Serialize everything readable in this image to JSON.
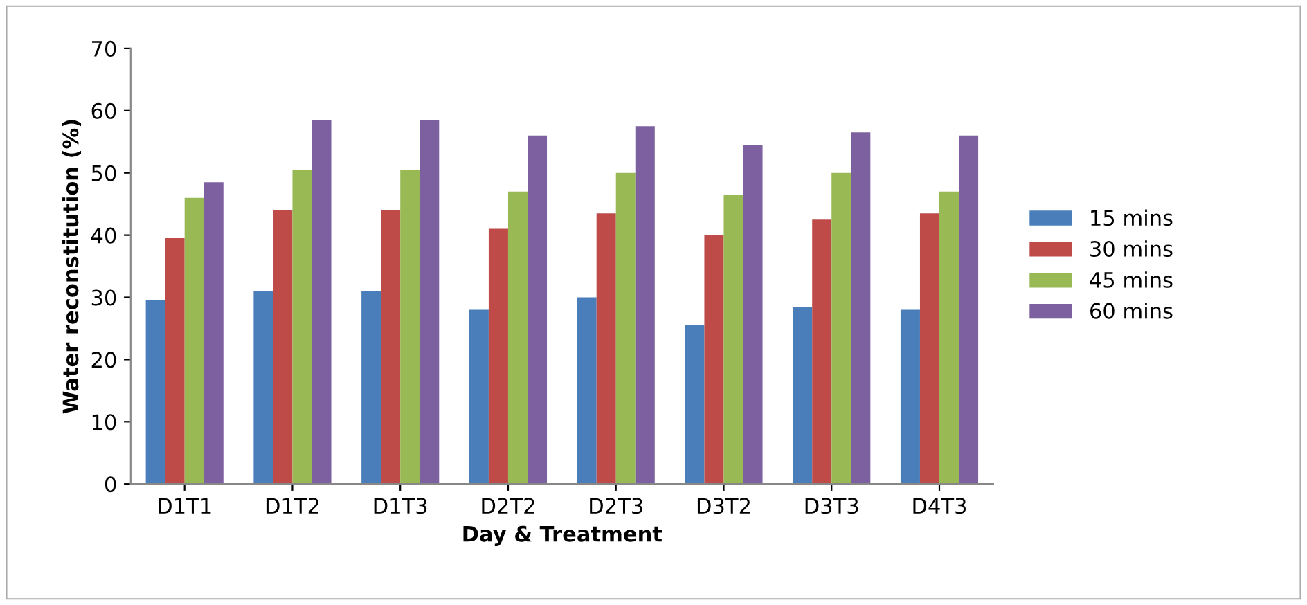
{
  "chart_data": {
    "type": "bar",
    "xlabel": "Day & Treatment",
    "ylabel": "Water reconstitution (%)",
    "categories": [
      "D1T1",
      "D1T2",
      "D1T3",
      "D2T2",
      "D2T3",
      "D3T2",
      "D3T3",
      "D4T3"
    ],
    "series": [
      {
        "name": "15 mins",
        "color": "#4a7ebb",
        "values": [
          29.5,
          31,
          31,
          28,
          30,
          25.5,
          28.5,
          28
        ]
      },
      {
        "name": "30 mins",
        "color": "#be4b48",
        "values": [
          39.5,
          44,
          44,
          41,
          43.5,
          40,
          42.5,
          43.5
        ]
      },
      {
        "name": "45 mins",
        "color": "#98b954",
        "values": [
          46,
          50.5,
          50.5,
          47,
          50,
          46.5,
          50,
          47
        ]
      },
      {
        "name": "60 mins",
        "color": "#7d60a0",
        "values": [
          48.5,
          58.5,
          58.5,
          56,
          57.5,
          54.5,
          56.5,
          56
        ]
      }
    ],
    "ylim": [
      0,
      70
    ],
    "yticks": [
      0,
      10,
      20,
      30,
      40,
      50,
      60,
      70
    ],
    "grid": false,
    "legend": "right"
  }
}
